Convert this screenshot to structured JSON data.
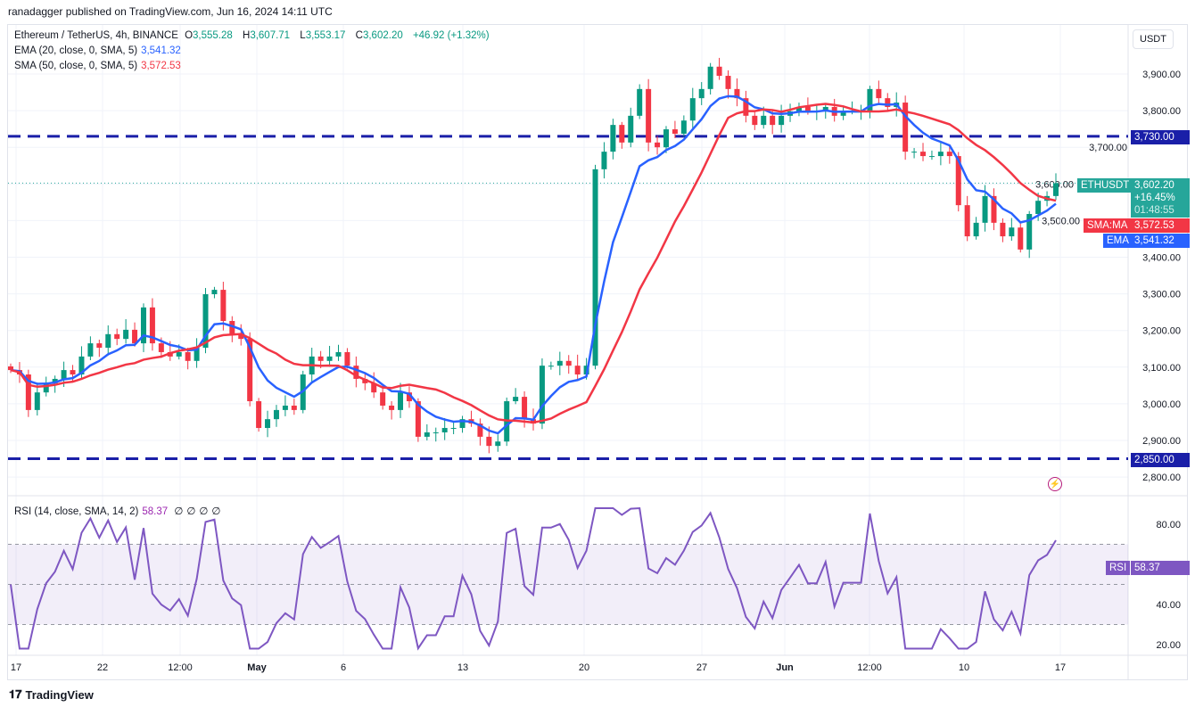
{
  "header": {
    "published": "ranadagger published on TradingView.com, Jun 16, 2024 14:11 UTC"
  },
  "legend": {
    "symbol": "Ethereum / TetherUS, 4h, BINANCE",
    "o_label": "O",
    "o": "3,555.28",
    "h_label": "H",
    "h": "3,607.71",
    "l_label": "L",
    "l": "3,553.17",
    "c_label": "C",
    "c": "3,602.20",
    "change": "+46.92 (+1.32%)",
    "ema_label": "EMA (20, close, 0, SMA, 5)",
    "ema_value": "3,541.32",
    "sma_label": "SMA (50, close, 0, SMA, 5)",
    "sma_value": "3,572.53",
    "rsi_label": "RSI (14, close, SMA, 14, 2)",
    "rsi_value": "58.37",
    "rsi_extra": [
      "∅",
      "∅",
      "∅",
      "∅"
    ]
  },
  "currency_button": "USDT",
  "tags": {
    "symbol": "ETHUSDT",
    "price": "3,602.20",
    "pct": "+16.45%",
    "countdown": "01:48:55",
    "sma_name": "SMA:MA",
    "sma": "3,572.53",
    "ema_name": "EMA",
    "ema": "3,541.32",
    "level_high": "3,730.00",
    "level_low": "2,850.00",
    "rsi_name": "RSI",
    "rsi": "58.37"
  },
  "footer": {
    "brand": "TradingView"
  },
  "colors": {
    "up": "#089981",
    "down": "#f23645",
    "ema": "#2962ff",
    "sma": "#f23645",
    "rsi": "#7e57c2",
    "levels": "#1a1fa8"
  },
  "chart_data": {
    "type": "candlestick",
    "title": "Ethereum / TetherUS, 4h, BINANCE",
    "x_range": [
      "Apr 16",
      "Jun 16"
    ],
    "ylim": [
      2760,
      3980
    ],
    "price_ticks": [
      "3,900.00",
      "3,800.00",
      "3,700.00",
      "3,600.00",
      "3,500.00",
      "3,400.00",
      "3,300.00",
      "3,200.00",
      "3,100.00",
      "3,000.00",
      "2,900.00",
      "2,800.00"
    ],
    "price_tick_values": [
      3900,
      3800,
      3700,
      3600,
      3500,
      3400,
      3300,
      3200,
      3100,
      3000,
      2900,
      2800
    ],
    "time_ticks": [
      "17",
      "22",
      "12:00",
      "May",
      "6",
      "13",
      "20",
      "27",
      "Jun",
      "12:00",
      "10",
      "17"
    ],
    "horizontal_levels": [
      3730,
      2850
    ],
    "last_price": 3602.2,
    "closes_approx": [
      3092,
      3080,
      2983,
      3031,
      3056,
      3068,
      3092,
      3080,
      3129,
      3165,
      3153,
      3190,
      3177,
      3202,
      3165,
      3263,
      3165,
      3141,
      3129,
      3141,
      3117,
      3153,
      3299,
      3311,
      3226,
      3190,
      3177,
      3007,
      2934,
      2958,
      2983,
      2995,
      2983,
      3080,
      3129,
      3117,
      3129,
      3141,
      3104,
      3068,
      3056,
      3031,
      2995,
      2983,
      3031,
      3007,
      2910,
      2922,
      2922,
      2934,
      2934,
      2958,
      2946,
      2910,
      2885,
      2897,
      3007,
      3019,
      2958,
      2946,
      3104,
      3104,
      3117,
      3104,
      3080,
      3104,
      3640,
      3688,
      3761,
      3713,
      3786,
      3859,
      3713,
      3700,
      3749,
      3737,
      3773,
      3834,
      3859,
      3920,
      3895,
      3859,
      3834,
      3786,
      3761,
      3786,
      3761,
      3786,
      3798,
      3810,
      3798,
      3798,
      3810,
      3786,
      3798,
      3798,
      3798,
      3859,
      3834,
      3810,
      3822,
      3688,
      3688,
      3676,
      3676,
      3688,
      3676,
      3542,
      3457,
      3494,
      3567,
      3494,
      3457,
      3481,
      3421,
      3518,
      3554,
      3567,
      3602
    ],
    "ema": {
      "name": "EMA",
      "last": 3541.32
    },
    "sma": {
      "name": "SMA:MA",
      "last": 3572.53
    },
    "rsi": {
      "ticks": [
        "80.00",
        "40.00",
        "20.00"
      ],
      "tick_values": [
        80,
        40,
        20
      ],
      "band": [
        30,
        70
      ],
      "mid": 50,
      "ylim": [
        15,
        88
      ],
      "last": 58.37
    }
  }
}
